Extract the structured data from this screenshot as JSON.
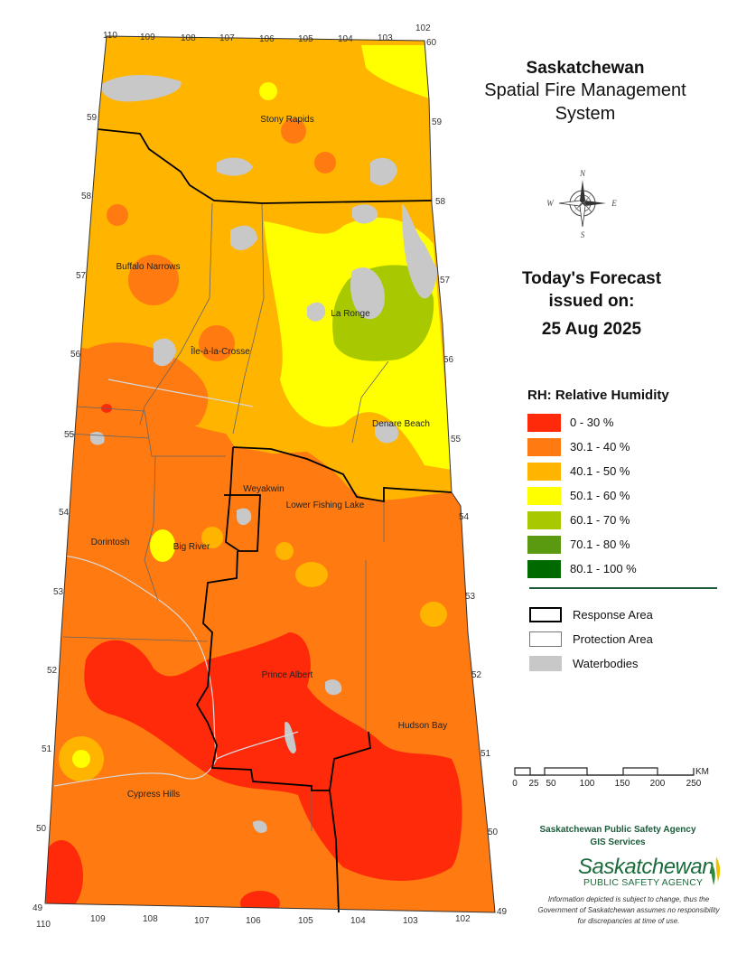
{
  "title": {
    "line1": "Saskatchewan",
    "line2": "Spatial Fire Management",
    "line3": "System"
  },
  "forecast": {
    "line1": "Today's Forecast",
    "line2": "issued on:",
    "date": "25 Aug 2025"
  },
  "compass": {
    "icon": "compass-rose-icon",
    "n": "N",
    "e": "E",
    "s": "S",
    "w": "W"
  },
  "legend": {
    "title": "RH: Relative Humidity",
    "classes": [
      {
        "label": "0 - 30 %",
        "color": "#ff2a0a"
      },
      {
        "label": "30.1 - 40 %",
        "color": "#ff7a10"
      },
      {
        "label": "40.1 - 50 %",
        "color": "#ffb400"
      },
      {
        "label": "50.1 - 60 %",
        "color": "#ffff00"
      },
      {
        "label": "60.1 - 70 %",
        "color": "#a8c800"
      },
      {
        "label": "70.1 - 80 %",
        "color": "#5a9a10"
      },
      {
        "label": "80.1 - 100 %",
        "color": "#006a00"
      }
    ]
  },
  "layers": {
    "response": "Response Area",
    "protection": "Protection Area",
    "water": "Waterbodies",
    "water_color": "#c8c8c8"
  },
  "scale": {
    "unit": "KM",
    "ticks": [
      "0",
      "25",
      "50",
      "100",
      "150",
      "200",
      "250"
    ]
  },
  "places": [
    "Stony Rapids",
    "Buffalo Narrows",
    "La Ronge",
    "Île-à-la-Crosse",
    "Denare Beach",
    "Weyakwin",
    "Lower Fishing Lake",
    "Dorintosh",
    "Big River",
    "Prince Albert",
    "Hudson Bay",
    "Cypress Hills"
  ],
  "longitudes_top": [
    "110",
    "109",
    "108",
    "107",
    "106",
    "105",
    "104",
    "103",
    "102"
  ],
  "longitudes_bottom": [
    "110",
    "109",
    "108",
    "107",
    "106",
    "105",
    "104",
    "103",
    "102"
  ],
  "latitudes_left": [
    "59",
    "58",
    "57",
    "56",
    "55",
    "54",
    "53",
    "52",
    "51",
    "50",
    "49"
  ],
  "latitudes_right": [
    "60",
    "59",
    "58",
    "57",
    "56",
    "55",
    "54",
    "53",
    "52",
    "51",
    "50",
    "49"
  ],
  "agency": {
    "line1": "Saskatchewan Public Safety Agency",
    "line2": "GIS  Services",
    "logo_word": "Saskatchewan",
    "logo_sub": "PUBLIC SAFETY AGENCY",
    "disclaimer": "Information depicted is subject to change, thus the Government of Saskatchewan assumes no responsibility for discrepancies at time of use."
  }
}
